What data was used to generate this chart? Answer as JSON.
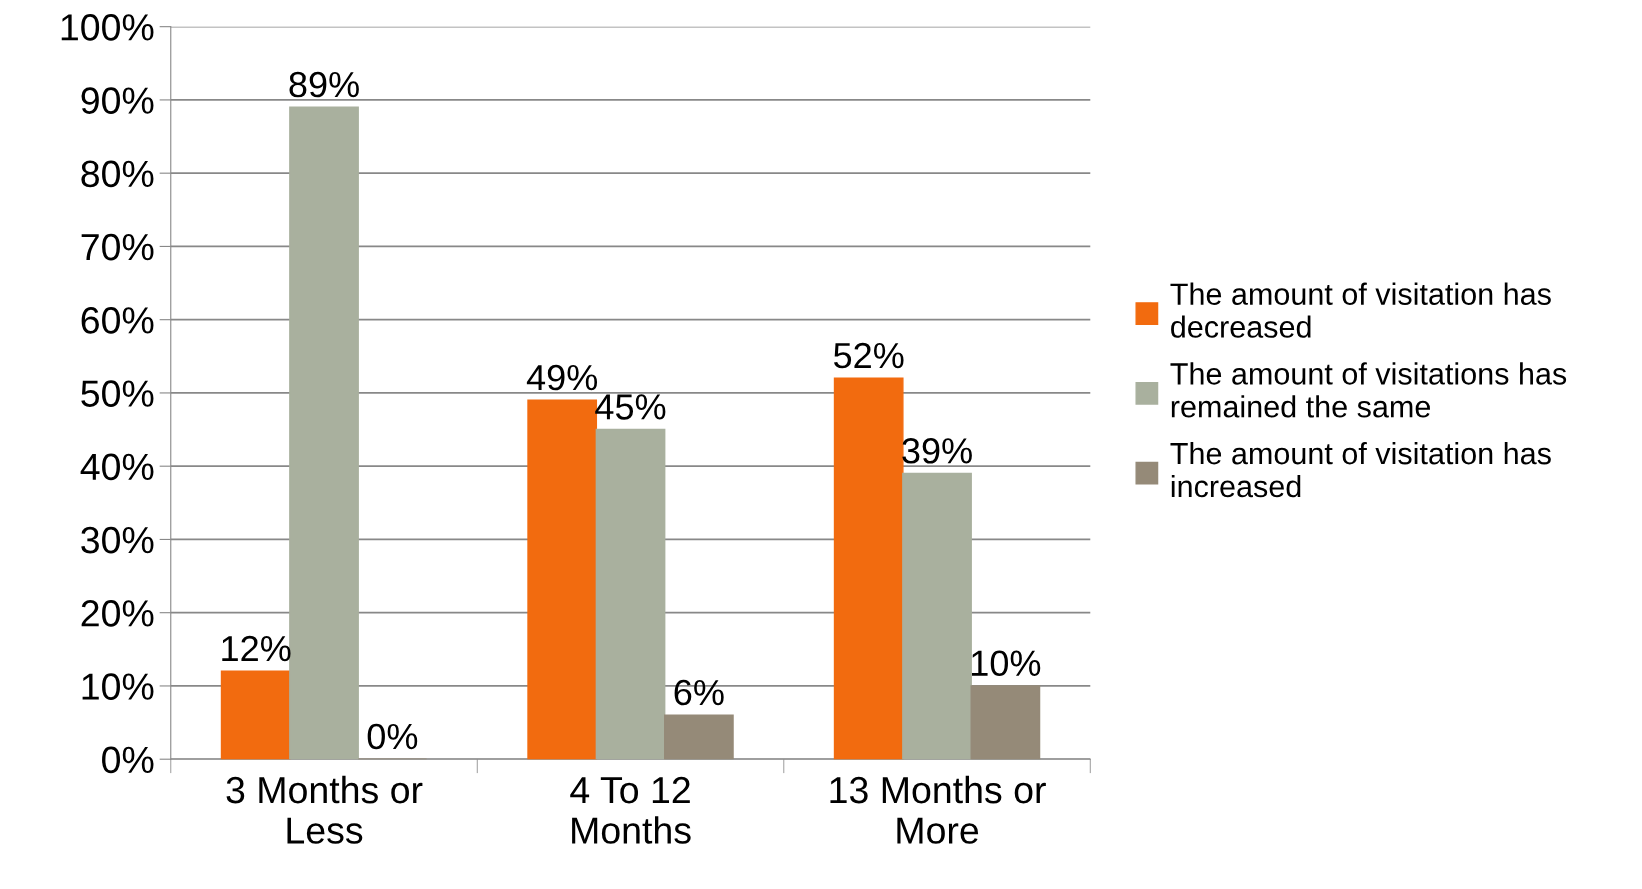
{
  "chart_data": {
    "type": "bar",
    "categories": [
      "3 Months or\nLess",
      "4 To 12\nMonths",
      "13 Months or\nMore"
    ],
    "series": [
      {
        "name": "The amount of visitation has\ndecreased",
        "color": "#f26b0f",
        "values": [
          12,
          49,
          52
        ],
        "value_labels": [
          "12%",
          "49%",
          "52%"
        ]
      },
      {
        "name": "The amount of visitations has\nremained the same",
        "color": "#a9b09e",
        "values": [
          89,
          45,
          39
        ],
        "value_labels": [
          "89%",
          "45%",
          "39%"
        ]
      },
      {
        "name": "The amount of visitation has\nincreased",
        "color": "#958a78",
        "values": [
          0,
          6,
          10
        ],
        "value_labels": [
          "0%",
          "6%",
          "10%"
        ]
      }
    ],
    "ylim": [
      0,
      100
    ],
    "yticks": [
      {
        "value": 0,
        "label": "0%"
      },
      {
        "value": 10,
        "label": "10%"
      },
      {
        "value": 20,
        "label": "20%"
      },
      {
        "value": 30,
        "label": "30%"
      },
      {
        "value": 40,
        "label": "40%"
      },
      {
        "value": 50,
        "label": "50%"
      },
      {
        "value": 60,
        "label": "60%"
      },
      {
        "value": 70,
        "label": "70%"
      },
      {
        "value": 80,
        "label": "80%"
      },
      {
        "value": 90,
        "label": "90%"
      },
      {
        "value": 100,
        "label": "100%"
      }
    ],
    "grid": "y",
    "legend": "right"
  }
}
